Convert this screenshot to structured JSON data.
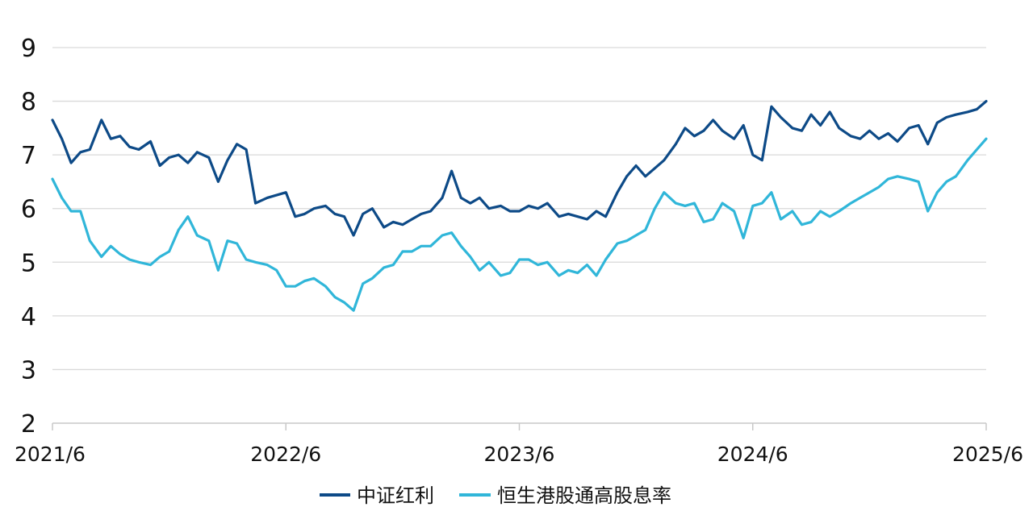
{
  "chart_data": {
    "type": "line",
    "title": "",
    "xlabel": "",
    "ylabel": "",
    "x_tick_labels": [
      "2021/6",
      "2022/6",
      "2023/6",
      "2024/6",
      "2025/6"
    ],
    "x_ticks": [
      2021.5,
      2022.5,
      2023.5,
      2024.5,
      2025.5
    ],
    "xlim": [
      2021.5,
      2025.5
    ],
    "y_ticks": [
      2,
      3,
      4,
      5,
      6,
      7,
      8,
      9
    ],
    "y_tick_labels": [
      "2",
      "3",
      "4",
      "5",
      "6",
      "7",
      "8",
      "9"
    ],
    "ylim": [
      2,
      9
    ],
    "grid": "horizontal",
    "legend_position": "bottom",
    "series": [
      {
        "name": "中证红利",
        "color": "#0d4a87",
        "x": [
          2021.5,
          2021.54,
          2021.58,
          2021.62,
          2021.66,
          2021.71,
          2021.75,
          2021.79,
          2021.83,
          2021.87,
          2021.92,
          2021.96,
          2022.0,
          2022.04,
          2022.08,
          2022.12,
          2022.17,
          2022.21,
          2022.25,
          2022.29,
          2022.33,
          2022.37,
          2022.42,
          2022.46,
          2022.5,
          2022.54,
          2022.58,
          2022.62,
          2022.67,
          2022.71,
          2022.75,
          2022.79,
          2022.83,
          2022.87,
          2022.92,
          2022.96,
          2023.0,
          2023.04,
          2023.08,
          2023.12,
          2023.17,
          2023.21,
          2023.25,
          2023.29,
          2023.33,
          2023.37,
          2023.42,
          2023.46,
          2023.5,
          2023.54,
          2023.58,
          2023.62,
          2023.67,
          2023.71,
          2023.75,
          2023.79,
          2023.83,
          2023.87,
          2023.92,
          2023.96,
          2024.0,
          2024.04,
          2024.08,
          2024.12,
          2024.17,
          2024.21,
          2024.25,
          2024.29,
          2024.33,
          2024.37,
          2024.42,
          2024.46,
          2024.5,
          2024.54,
          2024.58,
          2024.62,
          2024.67,
          2024.71,
          2024.75,
          2024.79,
          2024.83,
          2024.87,
          2024.92,
          2024.96,
          2025.0,
          2025.04,
          2025.08,
          2025.12,
          2025.17,
          2025.21,
          2025.25,
          2025.29,
          2025.33,
          2025.37,
          2025.42,
          2025.46,
          2025.5
        ],
        "y": [
          7.65,
          7.3,
          6.85,
          7.05,
          7.1,
          7.65,
          7.3,
          7.35,
          7.15,
          7.1,
          7.25,
          6.8,
          6.95,
          7.0,
          6.85,
          7.05,
          6.95,
          6.5,
          6.9,
          7.2,
          7.1,
          6.1,
          6.2,
          6.25,
          6.3,
          5.85,
          5.9,
          6.0,
          6.05,
          5.9,
          5.85,
          5.5,
          5.9,
          6.0,
          5.65,
          5.75,
          5.7,
          5.8,
          5.9,
          5.95,
          6.2,
          6.7,
          6.2,
          6.1,
          6.2,
          6.0,
          6.05,
          5.95,
          5.95,
          6.05,
          6.0,
          6.1,
          5.85,
          5.9,
          5.85,
          5.8,
          5.95,
          5.85,
          6.3,
          6.6,
          6.8,
          6.6,
          6.75,
          6.9,
          7.2,
          7.5,
          7.35,
          7.45,
          7.65,
          7.45,
          7.3,
          7.55,
          7.0,
          6.9,
          7.9,
          7.7,
          7.5,
          7.45,
          7.75,
          7.55,
          7.8,
          7.5,
          7.35,
          7.3,
          7.45,
          7.3,
          7.4,
          7.25,
          7.5,
          7.55,
          7.2,
          7.6,
          7.7,
          7.75,
          7.8,
          7.85,
          8.0
        ]
      },
      {
        "name": "恒生港股通高股息率",
        "color": "#30b6d9",
        "x": [
          2021.5,
          2021.54,
          2021.58,
          2021.62,
          2021.66,
          2021.71,
          2021.75,
          2021.79,
          2021.83,
          2021.87,
          2021.92,
          2021.96,
          2022.0,
          2022.04,
          2022.08,
          2022.12,
          2022.17,
          2022.21,
          2022.25,
          2022.29,
          2022.33,
          2022.37,
          2022.42,
          2022.46,
          2022.5,
          2022.54,
          2022.58,
          2022.62,
          2022.67,
          2022.71,
          2022.75,
          2022.79,
          2022.83,
          2022.87,
          2022.92,
          2022.96,
          2023.0,
          2023.04,
          2023.08,
          2023.12,
          2023.17,
          2023.21,
          2023.25,
          2023.29,
          2023.33,
          2023.37,
          2023.42,
          2023.46,
          2023.5,
          2023.54,
          2023.58,
          2023.62,
          2023.67,
          2023.71,
          2023.75,
          2023.79,
          2023.83,
          2023.87,
          2023.92,
          2023.96,
          2024.0,
          2024.04,
          2024.08,
          2024.12,
          2024.17,
          2024.21,
          2024.25,
          2024.29,
          2024.33,
          2024.37,
          2024.42,
          2024.46,
          2024.5,
          2024.54,
          2024.58,
          2024.62,
          2024.67,
          2024.71,
          2024.75,
          2024.79,
          2024.83,
          2024.87,
          2024.92,
          2024.96,
          2025.0,
          2025.04,
          2025.08,
          2025.12,
          2025.17,
          2025.21,
          2025.25,
          2025.29,
          2025.33,
          2025.37,
          2025.42,
          2025.46,
          2025.5
        ],
        "y": [
          6.55,
          6.2,
          5.95,
          5.95,
          5.4,
          5.1,
          5.3,
          5.15,
          5.05,
          5.0,
          4.95,
          5.1,
          5.2,
          5.6,
          5.85,
          5.5,
          5.4,
          4.85,
          5.4,
          5.35,
          5.05,
          5.0,
          4.95,
          4.85,
          4.55,
          4.55,
          4.65,
          4.7,
          4.55,
          4.35,
          4.25,
          4.1,
          4.6,
          4.7,
          4.9,
          4.95,
          5.2,
          5.2,
          5.3,
          5.3,
          5.5,
          5.55,
          5.3,
          5.1,
          4.85,
          5.0,
          4.75,
          4.8,
          5.05,
          5.05,
          4.95,
          5.0,
          4.75,
          4.85,
          4.8,
          4.95,
          4.75,
          5.05,
          5.35,
          5.4,
          5.5,
          5.6,
          6.0,
          6.3,
          6.1,
          6.05,
          6.1,
          5.75,
          5.8,
          6.1,
          5.95,
          5.45,
          6.05,
          6.1,
          6.3,
          5.8,
          5.95,
          5.7,
          5.75,
          5.95,
          5.85,
          5.95,
          6.1,
          6.2,
          6.3,
          6.4,
          6.55,
          6.6,
          6.55,
          6.5,
          5.95,
          6.3,
          6.5,
          6.6,
          6.9,
          7.1,
          7.3
        ]
      }
    ]
  }
}
